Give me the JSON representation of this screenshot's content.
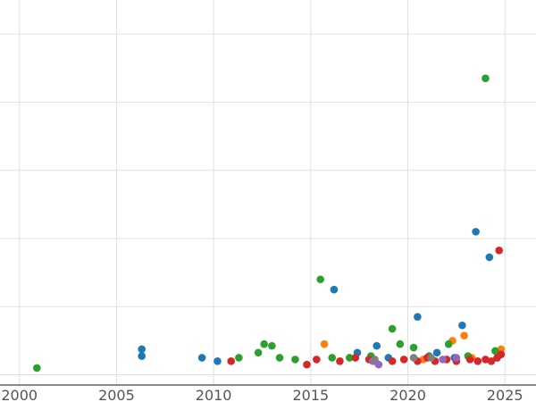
{
  "chart_data": {
    "type": "scatter",
    "title": "",
    "xlabel": "",
    "ylabel": "",
    "xlim": [
      1999,
      2026.6
    ],
    "ylim": [
      -3,
      110
    ],
    "x_ticks": [
      2000,
      2005,
      2010,
      2015,
      2020,
      2025
    ],
    "x_tick_labels": [
      "2000",
      "2005",
      "2010",
      "2015",
      "2020",
      "2025"
    ],
    "y_gridlines": [
      0,
      20,
      40,
      60,
      80,
      100
    ],
    "y_tick_labels_visible": false,
    "grid": true,
    "legend_position": "none",
    "marker_radius": 4.3,
    "gridline_color": "#e0e0e0",
    "axis_line_color": "#444444",
    "tick_label_color": "#555555",
    "series": [
      {
        "name": "series-blue",
        "color": "#1f77b4",
        "points": [
          [
            2006.3,
            7.5
          ],
          [
            2006.3,
            5.5
          ],
          [
            2009.4,
            5
          ],
          [
            2010.2,
            4
          ],
          [
            2016.2,
            25
          ],
          [
            2017.4,
            6.5
          ],
          [
            2018.4,
            8.5
          ],
          [
            2019.0,
            5
          ],
          [
            2020.5,
            17
          ],
          [
            2021.5,
            6.5
          ],
          [
            2022.4,
            5
          ],
          [
            2022.8,
            14.5
          ],
          [
            2023.5,
            42
          ],
          [
            2024.2,
            34.5
          ],
          [
            2024.6,
            5
          ]
        ]
      },
      {
        "name": "series-orange",
        "color": "#ff7f0e",
        "points": [
          [
            2015.7,
            9
          ],
          [
            2018.3,
            4
          ],
          [
            2020.8,
            4.5
          ],
          [
            2022.3,
            10
          ],
          [
            2022.9,
            11.5
          ],
          [
            2023.3,
            5
          ],
          [
            2024.8,
            7.5
          ]
        ]
      },
      {
        "name": "series-green",
        "color": "#2ca02c",
        "points": [
          [
            2000.9,
            2
          ],
          [
            2011.3,
            5
          ],
          [
            2012.3,
            6.5
          ],
          [
            2012.6,
            9
          ],
          [
            2013.0,
            8.5
          ],
          [
            2013.4,
            5
          ],
          [
            2014.2,
            4.5
          ],
          [
            2015.5,
            28
          ],
          [
            2016.1,
            5
          ],
          [
            2017.0,
            5
          ],
          [
            2018.1,
            5.5
          ],
          [
            2019.2,
            13.5
          ],
          [
            2019.6,
            9
          ],
          [
            2020.3,
            8
          ],
          [
            2021.1,
            5.5
          ],
          [
            2022.1,
            9
          ],
          [
            2023.1,
            5.5
          ],
          [
            2024.0,
            87
          ],
          [
            2024.5,
            7
          ]
        ]
      },
      {
        "name": "series-red",
        "color": "#d62728",
        "points": [
          [
            2010.9,
            4
          ],
          [
            2014.8,
            3
          ],
          [
            2015.3,
            4.5
          ],
          [
            2016.5,
            4
          ],
          [
            2017.3,
            5
          ],
          [
            2018.0,
            4.5
          ],
          [
            2019.2,
            4
          ],
          [
            2019.8,
            4.5
          ],
          [
            2020.5,
            4
          ],
          [
            2021.0,
            5
          ],
          [
            2021.4,
            4
          ],
          [
            2022.0,
            4.5
          ],
          [
            2022.5,
            4
          ],
          [
            2023.2,
            4.5
          ],
          [
            2023.6,
            4
          ],
          [
            2024.0,
            4.5
          ],
          [
            2024.3,
            4
          ],
          [
            2024.6,
            5
          ],
          [
            2024.8,
            6
          ],
          [
            2024.7,
            36.5
          ]
        ]
      },
      {
        "name": "series-purple",
        "color": "#9467bd",
        "points": [
          [
            2018.2,
            4
          ],
          [
            2018.5,
            3
          ],
          [
            2021.8,
            4.5
          ],
          [
            2022.5,
            5
          ]
        ]
      },
      {
        "name": "series-gray",
        "color": "#7f7f7f",
        "points": [
          [
            2018.3,
            4.5
          ],
          [
            2020.3,
            5
          ],
          [
            2021.2,
            5
          ]
        ]
      }
    ]
  }
}
